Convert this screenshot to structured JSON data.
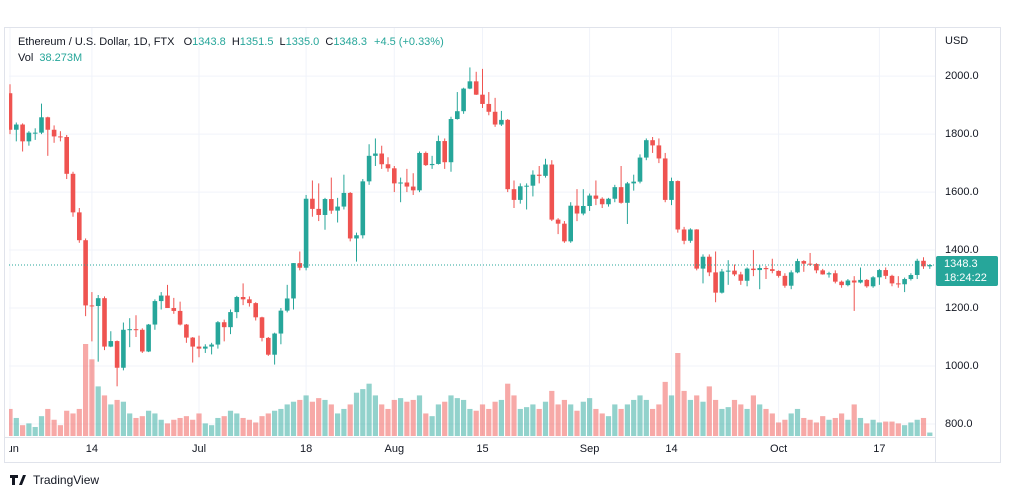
{
  "chart_data": {
    "type": "candlestick",
    "title": "Ethereum / U.S. Dollar, 1D, FTX",
    "ohlc_keys": [
      "O",
      "H",
      "L",
      "C"
    ],
    "ohlc_labels": [
      "1343.8",
      "1351.5",
      "1335.0",
      "1348.3"
    ],
    "change_label": "+4.5 (+0.33%)",
    "volume_name": "Vol",
    "volume_label": "38.273M",
    "currency": "USD",
    "countdown": "18:24:22",
    "watermark": "TradingView",
    "up_color": "#26a69a",
    "down_color": "#ef5350",
    "grid": true,
    "ylim": [
      762,
      2166
    ],
    "yticks": [
      {
        "value": 800,
        "label": "800.0"
      },
      {
        "value": 1000,
        "label": "1000.0"
      },
      {
        "value": 1200,
        "label": "1200.0"
      },
      {
        "value": 1400,
        "label": "1400.0"
      },
      {
        "value": 1600,
        "label": "1600.0"
      },
      {
        "value": 1800,
        "label": "1800.0"
      },
      {
        "value": 2000,
        "label": "2000.0"
      }
    ],
    "categories": [
      "Jun",
      null,
      null,
      null,
      null,
      null,
      null,
      null,
      null,
      null,
      null,
      null,
      null,
      "14",
      null,
      null,
      null,
      null,
      null,
      null,
      null,
      null,
      null,
      null,
      null,
      null,
      null,
      null,
      null,
      null,
      "Jul",
      null,
      null,
      null,
      null,
      null,
      null,
      null,
      null,
      null,
      null,
      null,
      null,
      null,
      null,
      null,
      null,
      "18",
      null,
      null,
      null,
      null,
      null,
      null,
      null,
      null,
      null,
      null,
      null,
      null,
      null,
      "Aug",
      null,
      null,
      null,
      null,
      null,
      null,
      null,
      null,
      null,
      null,
      null,
      null,
      null,
      "15",
      null,
      null,
      null,
      null,
      null,
      null,
      null,
      null,
      null,
      null,
      null,
      null,
      null,
      null,
      null,
      null,
      "Sep",
      null,
      null,
      null,
      null,
      null,
      null,
      null,
      null,
      null,
      null,
      null,
      null,
      "14",
      null,
      null,
      null,
      null,
      null,
      null,
      null,
      null,
      null,
      null,
      null,
      null,
      null,
      null,
      null,
      null,
      "Oct",
      null,
      null,
      null,
      null,
      null,
      null,
      null,
      null,
      null,
      null,
      null,
      null,
      null,
      null,
      null,
      "17",
      null,
      null,
      null,
      null,
      null,
      null,
      null,
      null
    ],
    "ohlc": [
      [
        1941,
        1972,
        1800,
        1815
      ],
      [
        1815,
        1840,
        1775,
        1833
      ],
      [
        1833,
        1837,
        1740,
        1775
      ],
      [
        1775,
        1810,
        1760,
        1805
      ],
      [
        1805,
        1820,
        1780,
        1805
      ],
      [
        1805,
        1905,
        1800,
        1858
      ],
      [
        1858,
        1860,
        1725,
        1815
      ],
      [
        1815,
        1830,
        1770,
        1792
      ],
      [
        1792,
        1810,
        1775,
        1790
      ],
      [
        1790,
        1797,
        1645,
        1663
      ],
      [
        1663,
        1670,
        1515,
        1530
      ],
      [
        1530,
        1545,
        1425,
        1434
      ],
      [
        1434,
        1440,
        1172,
        1209
      ],
      [
        1209,
        1255,
        1085,
        1207
      ],
      [
        1207,
        1245,
        1015,
        1234
      ],
      [
        1234,
        1240,
        1055,
        1067
      ],
      [
        1067,
        1120,
        1065,
        1086
      ],
      [
        1086,
        1088,
        930,
        994
      ],
      [
        994,
        1150,
        985,
        1125
      ],
      [
        1125,
        1165,
        1065,
        1127
      ],
      [
        1127,
        1175,
        1100,
        1125
      ],
      [
        1125,
        1130,
        1045,
        1050
      ],
      [
        1050,
        1145,
        1048,
        1143
      ],
      [
        1143,
        1230,
        1125,
        1224
      ],
      [
        1224,
        1255,
        1195,
        1243
      ],
      [
        1243,
        1280,
        1200,
        1200
      ],
      [
        1200,
        1235,
        1180,
        1190
      ],
      [
        1190,
        1222,
        1140,
        1143
      ],
      [
        1143,
        1145,
        1080,
        1098
      ],
      [
        1098,
        1100,
        1012,
        1067
      ],
      [
        1067,
        1105,
        1030,
        1060
      ],
      [
        1060,
        1075,
        1045,
        1067
      ],
      [
        1067,
        1080,
        1040,
        1074
      ],
      [
        1074,
        1155,
        1060,
        1151
      ],
      [
        1151,
        1160,
        1085,
        1134
      ],
      [
        1134,
        1195,
        1110,
        1186
      ],
      [
        1186,
        1242,
        1165,
        1238
      ],
      [
        1238,
        1285,
        1210,
        1230
      ],
      [
        1230,
        1240,
        1205,
        1217
      ],
      [
        1217,
        1220,
        1157,
        1168
      ],
      [
        1168,
        1170,
        1085,
        1097
      ],
      [
        1097,
        1100,
        1035,
        1039
      ],
      [
        1039,
        1115,
        1005,
        1112
      ],
      [
        1112,
        1200,
        1075,
        1191
      ],
      [
        1191,
        1280,
        1185,
        1233
      ],
      [
        1233,
        1355,
        1195,
        1355
      ],
      [
        1355,
        1395,
        1330,
        1339
      ],
      [
        1339,
        1590,
        1330,
        1577
      ],
      [
        1577,
        1640,
        1515,
        1542
      ],
      [
        1542,
        1630,
        1500,
        1521
      ],
      [
        1521,
        1580,
        1470,
        1576
      ],
      [
        1576,
        1650,
        1525,
        1536
      ],
      [
        1536,
        1580,
        1495,
        1550
      ],
      [
        1550,
        1660,
        1540,
        1597
      ],
      [
        1597,
        1600,
        1430,
        1440
      ],
      [
        1440,
        1460,
        1360,
        1451
      ],
      [
        1451,
        1645,
        1440,
        1637
      ],
      [
        1637,
        1765,
        1625,
        1725
      ],
      [
        1725,
        1785,
        1690,
        1733
      ],
      [
        1733,
        1760,
        1680,
        1696
      ],
      [
        1696,
        1720,
        1670,
        1682
      ],
      [
        1682,
        1690,
        1600,
        1630
      ],
      [
        1630,
        1650,
        1565,
        1633
      ],
      [
        1633,
        1680,
        1600,
        1619
      ],
      [
        1619,
        1665,
        1590,
        1606
      ],
      [
        1606,
        1740,
        1600,
        1735
      ],
      [
        1735,
        1740,
        1690,
        1693
      ],
      [
        1693,
        1725,
        1680,
        1697
      ],
      [
        1697,
        1795,
        1695,
        1776
      ],
      [
        1776,
        1785,
        1680,
        1703
      ],
      [
        1703,
        1860,
        1670,
        1852
      ],
      [
        1852,
        1945,
        1850,
        1879
      ],
      [
        1879,
        1960,
        1870,
        1957
      ],
      [
        1957,
        2030,
        1955,
        1982
      ],
      [
        1982,
        2015,
        1935,
        1936
      ],
      [
        1936,
        2025,
        1890,
        1904
      ],
      [
        1904,
        1945,
        1865,
        1877
      ],
      [
        1877,
        1925,
        1825,
        1833
      ],
      [
        1833,
        1880,
        1828,
        1849
      ],
      [
        1849,
        1852,
        1600,
        1610
      ],
      [
        1610,
        1640,
        1545,
        1573
      ],
      [
        1573,
        1630,
        1560,
        1620
      ],
      [
        1620,
        1630,
        1540,
        1622
      ],
      [
        1622,
        1675,
        1585,
        1660
      ],
      [
        1660,
        1690,
        1630,
        1656
      ],
      [
        1656,
        1715,
        1650,
        1695
      ],
      [
        1695,
        1710,
        1500,
        1505
      ],
      [
        1505,
        1510,
        1455,
        1491
      ],
      [
        1491,
        1500,
        1425,
        1430
      ],
      [
        1430,
        1565,
        1425,
        1553
      ],
      [
        1553,
        1610,
        1500,
        1526
      ],
      [
        1526,
        1610,
        1520,
        1552
      ],
      [
        1552,
        1595,
        1535,
        1588
      ],
      [
        1588,
        1640,
        1555,
        1577
      ],
      [
        1577,
        1582,
        1545,
        1558
      ],
      [
        1558,
        1580,
        1550,
        1577
      ],
      [
        1577,
        1625,
        1565,
        1617
      ],
      [
        1617,
        1690,
        1560,
        1563
      ],
      [
        1563,
        1635,
        1490,
        1630
      ],
      [
        1630,
        1660,
        1605,
        1636
      ],
      [
        1636,
        1730,
        1630,
        1719
      ],
      [
        1719,
        1785,
        1710,
        1779
      ],
      [
        1779,
        1790,
        1735,
        1761
      ],
      [
        1761,
        1785,
        1700,
        1716
      ],
      [
        1716,
        1735,
        1565,
        1573
      ],
      [
        1573,
        1650,
        1555,
        1638
      ],
      [
        1638,
        1640,
        1460,
        1471
      ],
      [
        1471,
        1480,
        1420,
        1432
      ],
      [
        1432,
        1475,
        1425,
        1471
      ],
      [
        1471,
        1472,
        1330,
        1336
      ],
      [
        1336,
        1385,
        1285,
        1377
      ],
      [
        1377,
        1385,
        1310,
        1323
      ],
      [
        1323,
        1395,
        1220,
        1253
      ],
      [
        1253,
        1335,
        1250,
        1326
      ],
      [
        1326,
        1365,
        1280,
        1329
      ],
      [
        1329,
        1350,
        1310,
        1316
      ],
      [
        1316,
        1325,
        1280,
        1294
      ],
      [
        1294,
        1340,
        1275,
        1336
      ],
      [
        1336,
        1400,
        1310,
        1331
      ],
      [
        1331,
        1350,
        1265,
        1338
      ],
      [
        1338,
        1345,
        1300,
        1334
      ],
      [
        1334,
        1370,
        1320,
        1328
      ],
      [
        1328,
        1330,
        1305,
        1311
      ],
      [
        1311,
        1320,
        1270,
        1277
      ],
      [
        1277,
        1330,
        1265,
        1323
      ],
      [
        1323,
        1370,
        1320,
        1362
      ],
      [
        1362,
        1365,
        1325,
        1353
      ],
      [
        1353,
        1390,
        1345,
        1352
      ],
      [
        1352,
        1355,
        1320,
        1330
      ],
      [
        1330,
        1335,
        1315,
        1316
      ],
      [
        1316,
        1325,
        1305,
        1320
      ],
      [
        1320,
        1330,
        1285,
        1291
      ],
      [
        1291,
        1295,
        1270,
        1279
      ],
      [
        1279,
        1300,
        1275,
        1295
      ],
      [
        1295,
        1310,
        1190,
        1288
      ],
      [
        1288,
        1340,
        1285,
        1297
      ],
      [
        1297,
        1300,
        1270,
        1275
      ],
      [
        1275,
        1310,
        1270,
        1306
      ],
      [
        1306,
        1335,
        1280,
        1331
      ],
      [
        1331,
        1340,
        1300,
        1311
      ],
      [
        1311,
        1315,
        1275,
        1285
      ],
      [
        1285,
        1310,
        1270,
        1282
      ],
      [
        1282,
        1305,
        1255,
        1300
      ],
      [
        1300,
        1320,
        1295,
        1314
      ],
      [
        1314,
        1370,
        1300,
        1363
      ],
      [
        1363,
        1375,
        1335,
        1343.8
      ],
      [
        1343.8,
        1351.5,
        1335,
        1348.3
      ]
    ],
    "volume": [
      300,
      200,
      120,
      140,
      100,
      220,
      300,
      180,
      120,
      280,
      250,
      300,
      1020,
      850,
      550,
      450,
      350,
      400,
      380,
      250,
      200,
      220,
      280,
      250,
      180,
      140,
      180,
      200,
      220,
      180,
      250,
      140,
      120,
      200,
      220,
      280,
      250,
      200,
      180,
      150,
      220,
      250,
      280,
      300,
      350,
      380,
      400,
      450,
      380,
      420,
      400,
      350,
      250,
      300,
      350,
      480,
      520,
      580,
      450,
      350,
      300,
      400,
      420,
      380,
      400,
      450,
      250,
      220,
      350,
      380,
      450,
      420,
      400,
      300,
      280,
      350,
      300,
      380,
      400,
      580,
      450,
      300,
      320,
      350,
      300,
      380,
      500,
      350,
      400,
      350,
      280,
      380,
      420,
      300,
      250,
      220,
      350,
      300,
      350,
      400,
      450,
      400,
      300,
      350,
      600,
      450,
      920,
      500,
      400,
      450,
      380,
      550,
      400,
      300,
      320,
      400,
      350,
      300,
      450,
      350,
      300,
      250,
      150,
      180,
      250,
      300,
      200,
      180,
      150,
      220,
      180,
      200,
      250,
      180,
      350,
      200,
      140,
      180,
      150,
      160,
      160,
      140,
      120,
      150,
      180,
      200,
      38.273
    ]
  }
}
